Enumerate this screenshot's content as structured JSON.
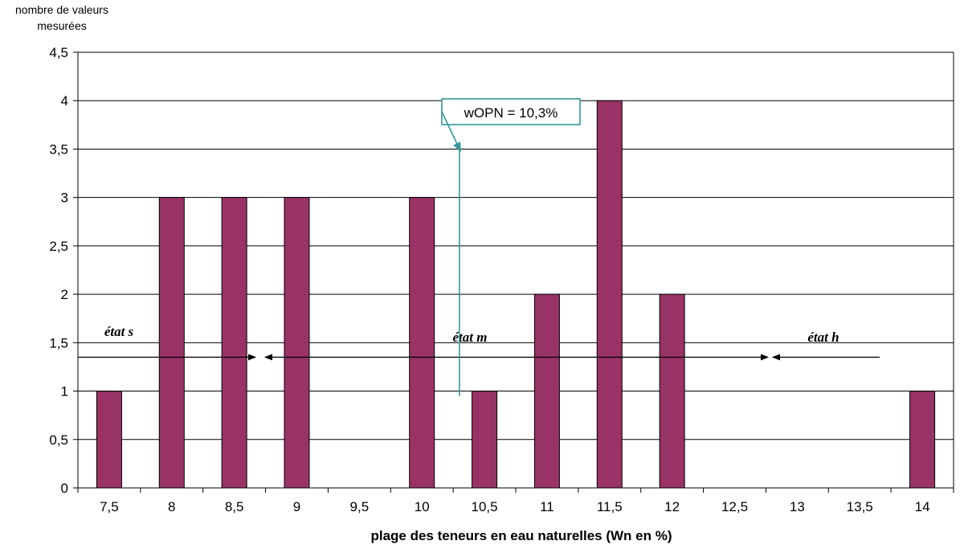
{
  "chart_data": {
    "type": "bar",
    "ylabel": "nombre  de valeurs mesurées",
    "xlabel": "plage des teneurs en eau naturelles (Wn en %)",
    "categories": [
      "7,5",
      "8",
      "8,5",
      "9",
      "9,5",
      "10",
      "10,5",
      "11",
      "11,5",
      "12",
      "12,5",
      "13",
      "13,5",
      "14"
    ],
    "values": [
      1,
      3,
      3,
      3,
      0,
      3,
      1,
      2,
      4,
      2,
      0,
      0,
      0,
      1
    ],
    "ylim": [
      0,
      4.5
    ],
    "yticks": [
      "0",
      "0,5",
      "1",
      "1,5",
      "2",
      "2,5",
      "3",
      "3,5",
      "4",
      "4,5"
    ],
    "grid": true,
    "bar_color": "#993366",
    "annotations": {
      "callout": {
        "text": "wOPN = 10,3%",
        "x_value": 10.3,
        "color": "#339999"
      },
      "states": [
        {
          "text": "état s"
        },
        {
          "text": "état m"
        },
        {
          "text": "état h"
        }
      ],
      "arrow_y_value": 1.35
    }
  }
}
